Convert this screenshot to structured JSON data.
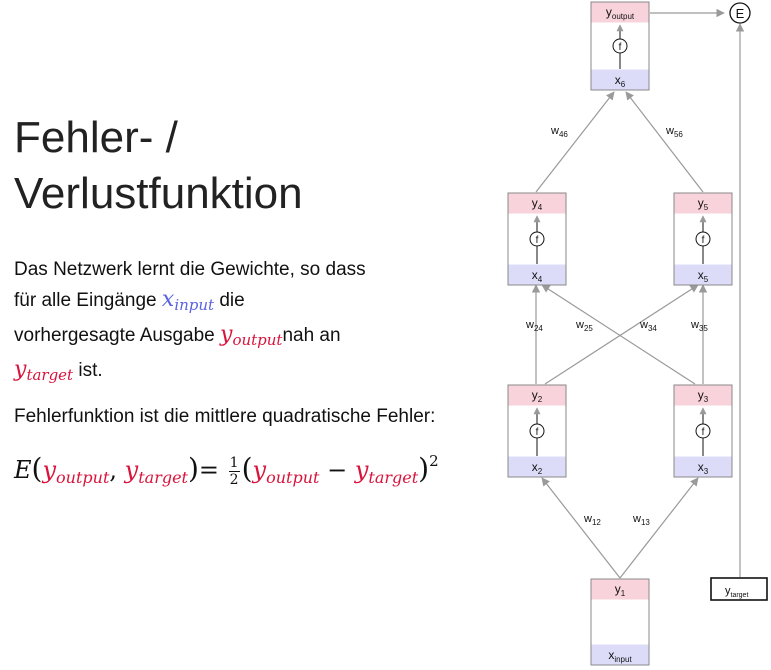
{
  "title": {
    "line1": "Fehler- /",
    "line2": "Verlustfunktion"
  },
  "paragraph1": {
    "t1": "Das Netzwerk lernt die Gewichte, so dass",
    "t2": "für alle Eingänge",
    "x_input": {
      "base": "x",
      "sub": "input"
    },
    "t3": "die",
    "t4": "vorhergesagte Ausgabe",
    "y_output": {
      "base": "y",
      "sub": "output"
    },
    "t5": "nah an",
    "y_target": {
      "base": "y",
      "sub": "target"
    },
    "t6": "ist."
  },
  "paragraph2": {
    "text": "Fehlerfunktion ist die mittlere quadratische Fehler:"
  },
  "formula": {
    "E": "E",
    "open": "(",
    "y1": {
      "base": "y",
      "sub": "output"
    },
    "comma": ",",
    "y2": {
      "base": "y",
      "sub": "target"
    },
    "close": ")",
    "eq": "=",
    "frac_num": "1",
    "frac_den": "2",
    "open2": "(",
    "y3": {
      "base": "y",
      "sub": "output"
    },
    "minus": "−",
    "y4": {
      "base": "y",
      "sub": "target"
    },
    "close2": ")",
    "exp": "2"
  },
  "network": {
    "neurons": {
      "n1": {
        "y": "y",
        "ysub": "1",
        "x": "x",
        "xsub": "input",
        "f": ""
      },
      "n2": {
        "y": "y",
        "ysub": "2",
        "x": "x",
        "xsub": "2",
        "f": "f"
      },
      "n3": {
        "y": "y",
        "ysub": "3",
        "x": "x",
        "xsub": "3",
        "f": "f"
      },
      "n4": {
        "y": "y",
        "ysub": "4",
        "x": "x",
        "xsub": "4",
        "f": "f"
      },
      "n5": {
        "y": "y",
        "ysub": "5",
        "x": "x",
        "xsub": "5",
        "f": "f"
      },
      "n6": {
        "y": "y",
        "ysub": "output",
        "x": "x",
        "xsub": "6",
        "f": "f"
      }
    },
    "weights": {
      "w12": {
        "w": "w",
        "sub": "12"
      },
      "w13": {
        "w": "w",
        "sub": "13"
      },
      "w24": {
        "w": "w",
        "sub": "24"
      },
      "w25": {
        "w": "w",
        "sub": "25"
      },
      "w34": {
        "w": "w",
        "sub": "34"
      },
      "w35": {
        "w": "w",
        "sub": "35"
      },
      "w46": {
        "w": "w",
        "sub": "46"
      },
      "w56": {
        "w": "w",
        "sub": "56"
      }
    },
    "error_node": {
      "label": "E"
    },
    "target_box": {
      "y": "y",
      "sub": "target"
    }
  },
  "colors": {
    "pink": "#f8d3dc",
    "lavender": "#dcdcf8",
    "red": "#d9143c",
    "blue": "#5b63e0",
    "line": "#9a9a9a"
  }
}
